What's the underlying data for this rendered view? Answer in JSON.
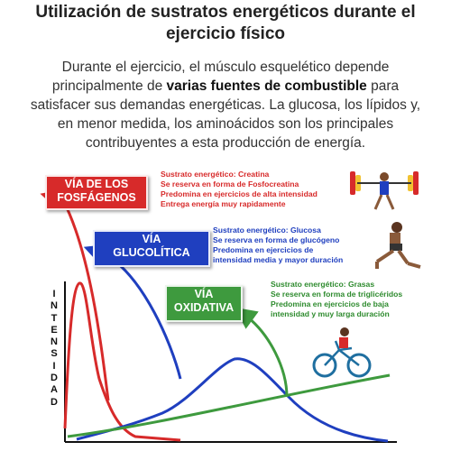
{
  "title": "Utilización de sustratos energéticos durante el ejercicio físico",
  "intro": {
    "part1": "Durante el ejercicio, el músculo esquelético depende principalmente de ",
    "bold": "varias fuentes de combustible",
    "part2": " para satisfacer sus demandas energéticas. La glucosa, los lípidos y, en menor medida, los aminoácidos son los principales contribuyentes a esta producción de energía."
  },
  "pathways": [
    {
      "label_line1": "VÍA DE LOS",
      "label_line2": "FOSFÁGENOS",
      "color": "#d72a2a",
      "details": [
        "Sustrato energético: Creatina",
        "Se reserva en forma de Fosfocreatina",
        "Predomina en ejercicios de alta intensidad",
        "Entrega energía muy rapidamente"
      ]
    },
    {
      "label_line1": "VÍA",
      "label_line2": "GLUCOLÍTICA",
      "color": "#1f3fbf",
      "details": [
        "Sustrato energético: Glucosa",
        "Se reserva en forma de glucógeno",
        "Predomina en ejercicios de",
        "intensidad media y mayor duración"
      ]
    },
    {
      "label_line1": "VÍA",
      "label_line2": "OXIDATIVA",
      "color": "#3e9a3e",
      "details": [
        "Sustrato energético: Grasas",
        "Se reserva en forma de triglicéridos",
        "Predomina en ejercicios de baja",
        "intensidad y muy larga duración"
      ]
    }
  ],
  "y_axis_letters": [
    "I",
    "N",
    "T",
    "E",
    "N",
    "S",
    "I",
    "D",
    "A",
    "D"
  ],
  "icons": [
    "weightlifter-icon",
    "lunge-athlete-icon",
    "cyclist-icon"
  ]
}
